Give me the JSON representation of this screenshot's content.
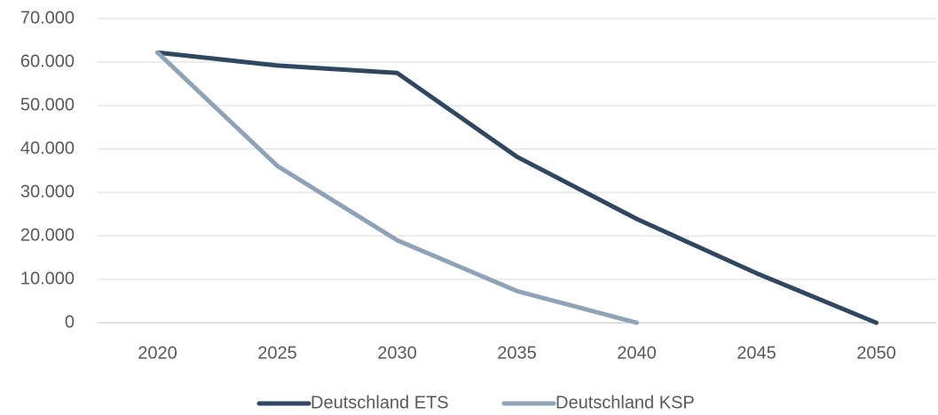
{
  "chart_data": {
    "type": "line",
    "categories": [
      "2020",
      "2025",
      "2030",
      "2035",
      "2040",
      "2045",
      "2050"
    ],
    "series": [
      {
        "name": "Deutschland ETS",
        "color": "#2f4760",
        "values": [
          62200,
          59200,
          57500,
          38200,
          23900,
          11400,
          0
        ]
      },
      {
        "name": "Deutschland KSP",
        "color": "#8ea3b8",
        "values": [
          62200,
          36100,
          19000,
          7300,
          0,
          null,
          null
        ]
      }
    ],
    "ylim": [
      0,
      70000
    ],
    "yticks": [
      0,
      {
        "value": 10000,
        "label": "10.000"
      },
      {
        "value": 20000,
        "label": "20.000"
      },
      {
        "value": 30000,
        "label": "30.000"
      },
      {
        "value": 40000,
        "label": "40.000"
      },
      {
        "value": 50000,
        "label": "50.000"
      },
      {
        "value": 60000,
        "label": "60.000"
      },
      {
        "value": 70000,
        "label": "70.000"
      }
    ],
    "grid": true,
    "legend": "bottom"
  }
}
